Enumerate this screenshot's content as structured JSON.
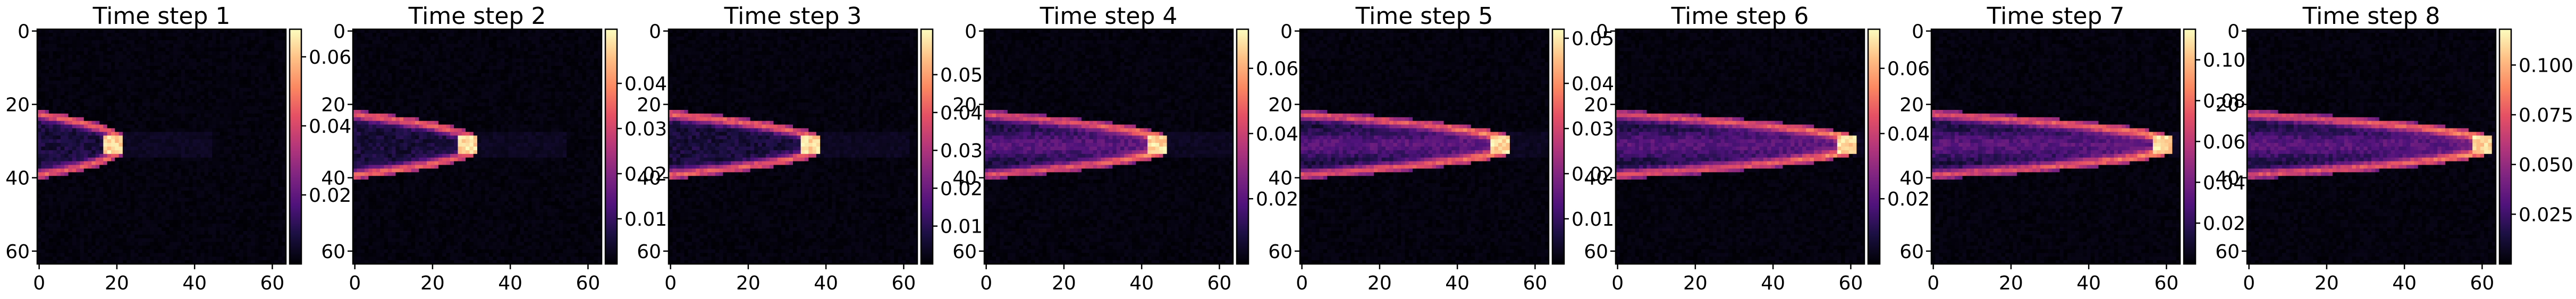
{
  "chart_data": {
    "type": "heatmap",
    "grid_size": 64,
    "colormap": "magma",
    "x_ticks": [
      0,
      20,
      40,
      60
    ],
    "y_ticks": [
      0,
      20,
      40,
      60
    ],
    "x_tick_labels": [
      "0",
      "20",
      "40",
      "60"
    ],
    "y_tick_labels": [
      "0",
      "20",
      "40",
      "60"
    ],
    "grid": false,
    "panels": [
      {
        "title": "Time step 1",
        "front_x": 20,
        "vmin": 0,
        "vmax": 0.068,
        "colorbar_ticks": [
          0.02,
          0.04,
          0.06
        ],
        "colorbar_labels": [
          "0.02",
          "0.04",
          "0.06"
        ]
      },
      {
        "title": "Time step 2",
        "front_x": 30,
        "vmin": 0,
        "vmax": 0.052,
        "colorbar_ticks": [
          0.01,
          0.02,
          0.03,
          0.04
        ],
        "colorbar_labels": [
          "0.01",
          "0.02",
          "0.03",
          "0.04"
        ]
      },
      {
        "title": "Time step 3",
        "front_x": 37,
        "vmin": 0,
        "vmax": 0.062,
        "colorbar_ticks": [
          0.01,
          0.02,
          0.03,
          0.04,
          0.05
        ],
        "colorbar_labels": [
          "0.01",
          "0.02",
          "0.03",
          "0.04",
          "0.05"
        ]
      },
      {
        "title": "Time step 4",
        "front_x": 45,
        "vmin": 0,
        "vmax": 0.072,
        "colorbar_ticks": [
          0.02,
          0.04,
          0.06
        ],
        "colorbar_labels": [
          "0.02",
          "0.04",
          "0.06"
        ]
      },
      {
        "title": "Time step 5",
        "front_x": 52,
        "vmin": 0,
        "vmax": 0.052,
        "colorbar_ticks": [
          0.01,
          0.02,
          0.03,
          0.04,
          0.05
        ],
        "colorbar_labels": [
          "0.01",
          "0.02",
          "0.03",
          "0.04",
          "0.05"
        ]
      },
      {
        "title": "Time step 6",
        "front_x": 60,
        "vmin": 0,
        "vmax": 0.072,
        "colorbar_ticks": [
          0.02,
          0.04,
          0.06
        ],
        "colorbar_labels": [
          "0.02",
          "0.04",
          "0.06"
        ]
      },
      {
        "title": "Time step 7",
        "front_x": 60,
        "vmin": 0,
        "vmax": 0.115,
        "colorbar_ticks": [
          0.02,
          0.04,
          0.06,
          0.08,
          0.1
        ],
        "colorbar_labels": [
          "0.02",
          "0.04",
          "0.06",
          "0.08",
          "0.10"
        ]
      },
      {
        "title": "Time step 8",
        "front_x": 61,
        "vmin": 0,
        "vmax": 0.118,
        "colorbar_ticks": [
          0.025,
          0.05,
          0.075,
          0.1
        ],
        "colorbar_labels": [
          "0.025",
          "0.050",
          "0.075",
          "0.100"
        ]
      }
    ]
  }
}
